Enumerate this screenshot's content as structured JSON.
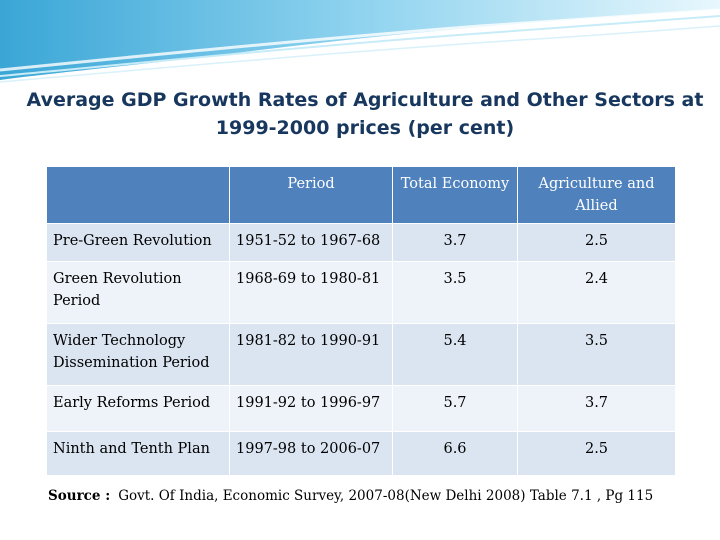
{
  "title": {
    "line1": "Average GDP Growth Rates of Agriculture and Other Sectors at",
    "line2": "1999-2000 prices (per cent)"
  },
  "table": {
    "headers": [
      "",
      "Period",
      "Total Economy",
      "Agriculture and Allied"
    ],
    "rows": [
      {
        "label": "Pre-Green Revolution",
        "period": "1951-52 to 1967-68",
        "total": "3.7",
        "agri": "2.5"
      },
      {
        "label": "Green Revolution Period",
        "period": "1968-69 to 1980-81",
        "total": "3.5",
        "agri": "2.4"
      },
      {
        "label": "Wider Technology Dissemination Period",
        "period": "1981-82 to 1990-91",
        "total": "5.4",
        "agri": "3.5"
      },
      {
        "label": "Early Reforms Period",
        "period": "1991-92 to 1996-97",
        "total": "5.7",
        "agri": "3.7"
      },
      {
        "label": "Ninth and Tenth Plan",
        "period": "1997-98 to 2006-07",
        "total": "6.6",
        "agri": "2.5"
      }
    ]
  },
  "source": {
    "label": "Source :",
    "text": "Govt. Of India, Economic Survey, 2007-08(New Delhi 2008) Table 7.1 , Pg 115"
  },
  "colors": {
    "header_bg": "#4f81bd",
    "row_odd": "#dbe5f1",
    "row_even": "#eef3f9",
    "title": "#17375e"
  }
}
